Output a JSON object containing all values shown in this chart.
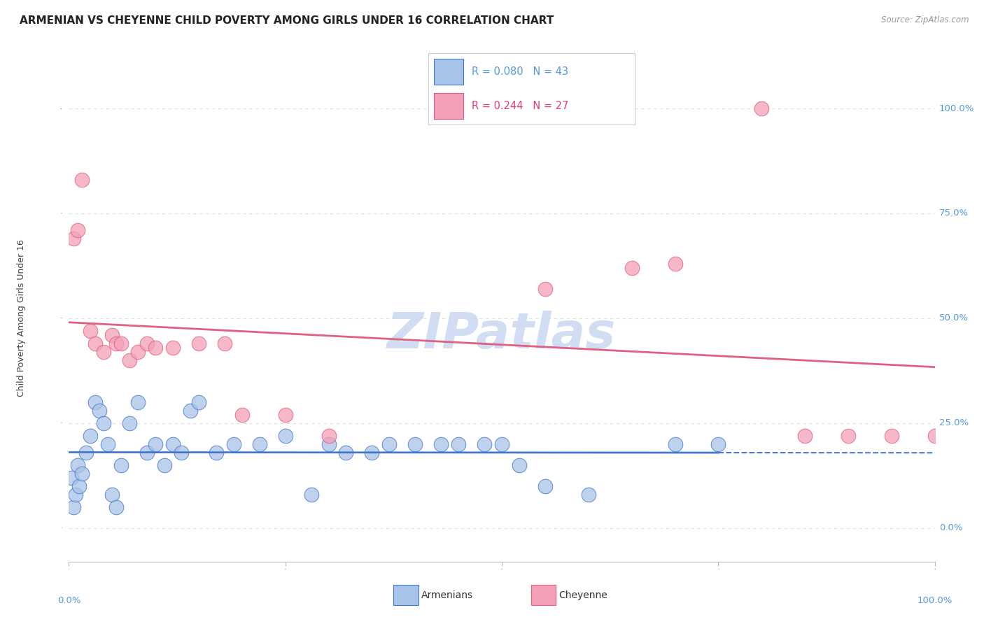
{
  "title": "ARMENIAN VS CHEYENNE CHILD POVERTY AMONG GIRLS UNDER 16 CORRELATION CHART",
  "source": "Source: ZipAtlas.com",
  "ylabel": "Child Poverty Among Girls Under 16",
  "ytick_values": [
    0,
    25,
    50,
    75,
    100
  ],
  "legend_R_armenians": "0.080",
  "legend_N_armenians": "43",
  "legend_R_cheyenne": "0.244",
  "legend_N_cheyenne": "27",
  "color_armenians": "#a8c4e8",
  "color_cheyenne": "#f4a0b8",
  "color_trend_armenians": "#4477cc",
  "color_trend_cheyenne": "#e06080",
  "watermark": "ZIPatlas",
  "armenians_x": [
    0.3,
    0.5,
    0.8,
    1.0,
    1.2,
    1.5,
    2.0,
    2.5,
    3.0,
    3.5,
    4.0,
    4.5,
    5.0,
    5.5,
    6.0,
    7.0,
    8.0,
    9.0,
    10.0,
    11.0,
    12.0,
    13.0,
    14.0,
    15.0,
    17.0,
    19.0,
    22.0,
    25.0,
    28.0,
    30.0,
    32.0,
    35.0,
    37.0,
    40.0,
    43.0,
    45.0,
    48.0,
    50.0,
    52.0,
    55.0,
    60.0,
    70.0,
    75.0
  ],
  "armenians_y": [
    12.0,
    5.0,
    8.0,
    15.0,
    10.0,
    13.0,
    18.0,
    22.0,
    30.0,
    28.0,
    25.0,
    20.0,
    8.0,
    5.0,
    15.0,
    25.0,
    30.0,
    18.0,
    20.0,
    15.0,
    20.0,
    18.0,
    28.0,
    30.0,
    18.0,
    20.0,
    20.0,
    22.0,
    8.0,
    20.0,
    18.0,
    18.0,
    20.0,
    20.0,
    20.0,
    20.0,
    20.0,
    20.0,
    15.0,
    10.0,
    8.0,
    20.0,
    20.0
  ],
  "cheyenne_x": [
    0.5,
    1.0,
    1.5,
    2.5,
    3.0,
    4.0,
    5.0,
    5.5,
    6.0,
    7.0,
    8.0,
    9.0,
    10.0,
    12.0,
    15.0,
    18.0,
    20.0,
    25.0,
    30.0,
    55.0,
    65.0,
    70.0,
    80.0,
    85.0,
    90.0,
    95.0,
    100.0
  ],
  "cheyenne_y": [
    69.0,
    71.0,
    83.0,
    47.0,
    44.0,
    42.0,
    46.0,
    44.0,
    44.0,
    40.0,
    42.0,
    44.0,
    43.0,
    43.0,
    44.0,
    44.0,
    27.0,
    27.0,
    22.0,
    57.0,
    62.0,
    63.0,
    100.0,
    22.0,
    22.0,
    22.0,
    22.0
  ],
  "background_color": "#ffffff",
  "grid_color": "#e0e0e0",
  "title_fontsize": 11,
  "axis_label_fontsize": 9,
  "tick_fontsize": 9.5,
  "watermark_color": "#c8d8f0",
  "watermark_fontsize": 52
}
